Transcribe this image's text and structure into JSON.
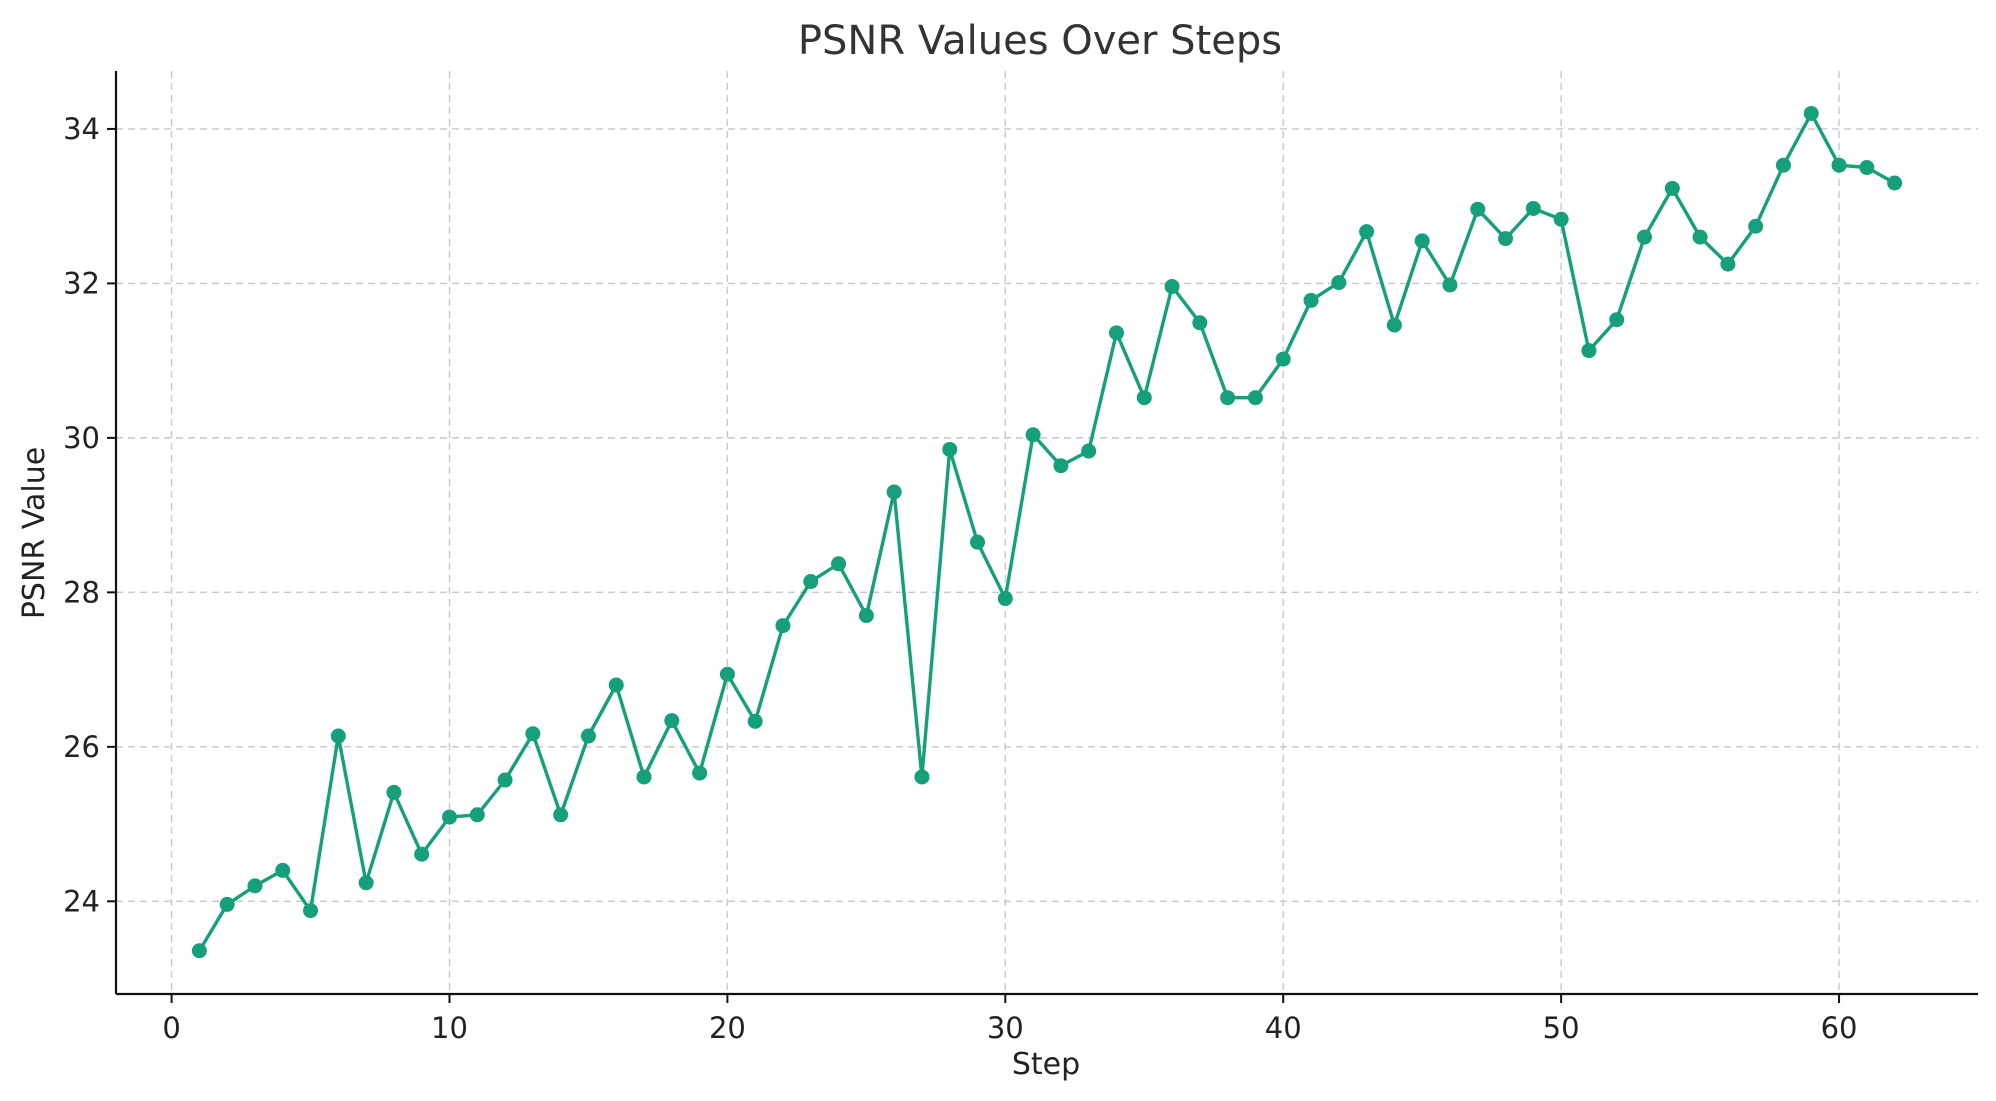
{
  "chart_data": {
    "type": "line",
    "title": "PSNR Values Over Steps",
    "xlabel": "Step",
    "ylabel": "PSNR Value",
    "xlim": [
      -2,
      65
    ],
    "ylim": [
      22.8,
      34.75
    ],
    "xticks": [
      0,
      10,
      20,
      30,
      40,
      50,
      60
    ],
    "yticks": [
      24,
      26,
      28,
      30,
      32,
      34
    ],
    "grid": true,
    "line_color": "#159f7a",
    "series": [
      {
        "x": [
          1,
          2,
          3,
          4,
          5,
          6,
          7,
          8,
          9,
          10,
          11,
          12,
          13,
          14,
          15,
          16,
          17,
          18,
          19,
          20,
          21,
          22,
          23,
          24,
          25,
          26,
          27,
          28,
          29,
          30,
          31,
          32,
          33,
          34,
          35,
          36,
          37,
          38,
          39,
          40,
          41,
          42,
          43,
          44,
          45,
          46,
          47,
          48,
          49,
          50,
          51,
          52,
          53,
          54,
          55,
          56,
          57,
          58,
          59,
          60,
          61,
          62
        ],
        "values": [
          23.36,
          23.96,
          24.2,
          24.4,
          23.88,
          26.14,
          24.24,
          25.41,
          24.61,
          25.09,
          25.12,
          25.57,
          26.17,
          25.12,
          26.14,
          26.8,
          25.61,
          26.34,
          25.66,
          26.94,
          26.33,
          27.57,
          28.14,
          28.37,
          27.7,
          29.3,
          25.61,
          29.85,
          28.65,
          27.92,
          30.04,
          29.64,
          29.83,
          31.36,
          30.52,
          31.96,
          31.49,
          30.52,
          30.52,
          31.02,
          31.78,
          32.01,
          32.67,
          31.46,
          32.55,
          31.98,
          32.96,
          32.58,
          32.97,
          32.83,
          31.13,
          31.53,
          32.6,
          33.23,
          32.6,
          32.25,
          32.74,
          33.53,
          34.2,
          33.53,
          33.5,
          33.3
        ]
      }
    ]
  }
}
